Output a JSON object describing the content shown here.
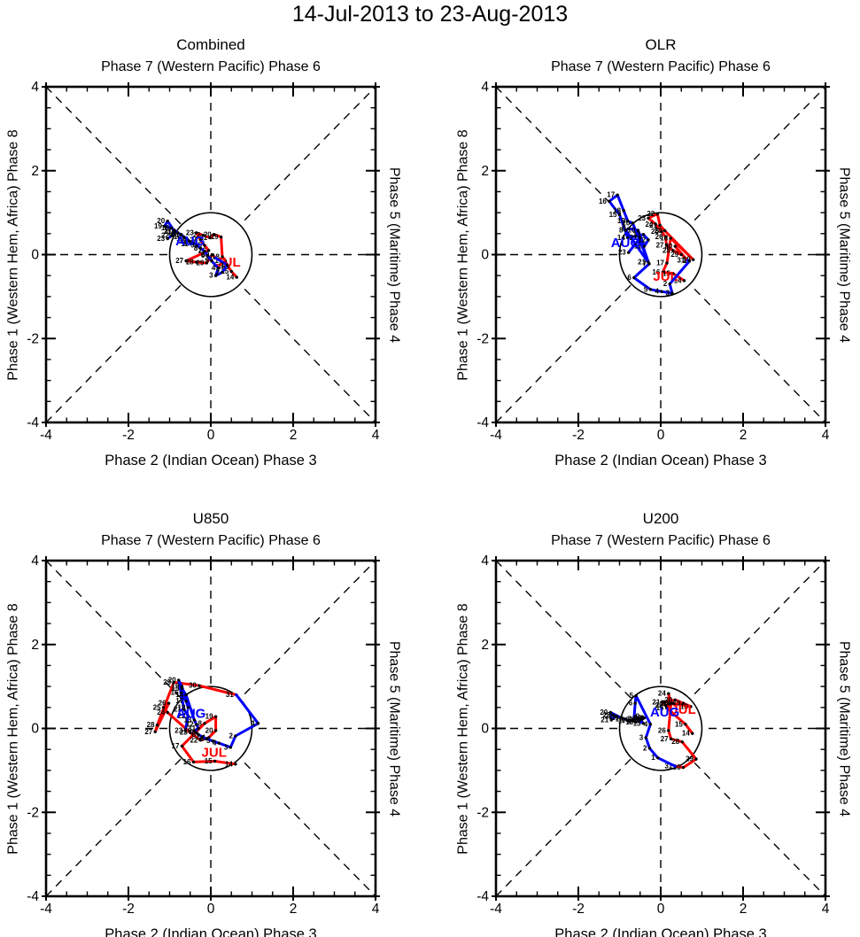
{
  "title": "14-Jul-2013 to 23-Aug-2013",
  "colors": {
    "jul": "#ff0000",
    "aug": "#0000ff",
    "axis": "#000000",
    "background": "#ffffff"
  },
  "axes": {
    "top_label": "Phase 7 (Western Pacific) Phase 6",
    "bottom_label": "Phase 2 (Indian Ocean) Phase 3",
    "left_label": "Phase 1 (Western Hem, Africa) Phase 8",
    "right_label": "Phase 5 (Maritime) Phase 4",
    "range": [
      -4,
      4
    ],
    "ticks": [
      -4,
      -2,
      0,
      2,
      4
    ],
    "minor_step": 0.5,
    "unit_circle_radius": 1
  },
  "chart_data": [
    {
      "type": "line",
      "title": "Combined",
      "xlim": [
        -4,
        4
      ],
      "ylim": [
        -4,
        4
      ],
      "series": [
        {
          "name": "JUL",
          "color": "#ff0000",
          "label_pos": [
            0.42,
            -0.28
          ],
          "days": [
            14,
            15,
            16,
            17,
            18,
            19,
            20,
            21,
            22,
            23,
            24,
            25,
            26,
            27,
            28,
            29,
            30,
            31
          ],
          "points": [
            [
              0.63,
              -0.54
            ],
            [
              0.5,
              -0.4
            ],
            [
              0.42,
              -0.28
            ],
            [
              0.35,
              -0.15
            ],
            [
              0.28,
              -0.05
            ],
            [
              0.25,
              0.42
            ],
            [
              0.08,
              0.48
            ],
            [
              -0.02,
              0.4
            ],
            [
              -0.18,
              0.46
            ],
            [
              -0.35,
              0.52
            ],
            [
              -0.25,
              0.35
            ],
            [
              -0.15,
              0.22
            ],
            [
              -0.05,
              0.1
            ],
            [
              -0.6,
              -0.15
            ],
            [
              -0.35,
              -0.18
            ],
            [
              -0.1,
              -0.2
            ],
            [
              0.03,
              0.0
            ],
            [
              0.12,
              -0.08
            ]
          ]
        },
        {
          "name": "AUG",
          "color": "#0000ff",
          "label_pos": [
            -0.5,
            0.22
          ],
          "days": [
            1,
            2,
            3,
            4,
            5,
            6,
            7,
            8,
            9,
            10,
            11,
            12,
            13,
            14,
            15,
            16,
            17,
            18,
            19,
            20,
            21,
            22,
            23
          ],
          "points": [
            [
              0.4,
              -0.25
            ],
            [
              0.28,
              -0.42
            ],
            [
              0.12,
              -0.5
            ],
            [
              0.18,
              -0.32
            ],
            [
              0.02,
              -0.15
            ],
            [
              -0.08,
              -0.02
            ],
            [
              -0.15,
              0.08
            ],
            [
              -0.25,
              0.15
            ],
            [
              -0.33,
              0.22
            ],
            [
              -0.42,
              0.28
            ],
            [
              -0.48,
              0.25
            ],
            [
              -0.52,
              0.32
            ],
            [
              -0.58,
              0.38
            ],
            [
              -0.65,
              0.42
            ],
            [
              -0.72,
              0.48
            ],
            [
              -0.8,
              0.52
            ],
            [
              -0.88,
              0.58
            ],
            [
              -0.95,
              0.63
            ],
            [
              -1.12,
              0.68
            ],
            [
              -1.05,
              0.8
            ],
            [
              -0.88,
              0.55
            ],
            [
              -0.95,
              0.45
            ],
            [
              -1.05,
              0.38
            ]
          ]
        }
      ]
    },
    {
      "type": "line",
      "title": "OLR",
      "xlim": [
        -4,
        4
      ],
      "ylim": [
        -4,
        4
      ],
      "series": [
        {
          "name": "JUL",
          "color": "#ff0000",
          "label_pos": [
            0.12,
            -0.62
          ],
          "days": [
            14,
            15,
            16,
            17,
            18,
            19,
            20,
            21,
            22,
            23,
            24,
            25,
            26,
            27,
            28,
            29,
            30,
            31
          ],
          "points": [
            [
              0.57,
              -0.62
            ],
            [
              0.3,
              -0.45
            ],
            [
              0.05,
              -0.42
            ],
            [
              0.15,
              -0.2
            ],
            [
              0.24,
              0.39
            ],
            [
              0.79,
              -0.12
            ],
            [
              0.1,
              0.57
            ],
            [
              -0.02,
              0.7
            ],
            [
              -0.08,
              0.97
            ],
            [
              -0.3,
              0.87
            ],
            [
              -0.12,
              0.72
            ],
            [
              0.02,
              0.55
            ],
            [
              0.12,
              0.42
            ],
            [
              0.14,
              0.22
            ],
            [
              0.3,
              0.1
            ],
            [
              0.5,
              0.0
            ],
            [
              0.35,
              0.2
            ],
            [
              0.65,
              -0.14
            ]
          ]
        },
        {
          "name": "AUG",
          "color": "#0000ff",
          "label_pos": [
            -0.85,
            0.18
          ],
          "days": [
            1,
            2,
            3,
            4,
            5,
            6,
            7,
            8,
            9,
            10,
            11,
            12,
            13,
            14,
            15,
            16,
            17,
            18,
            19,
            20,
            21,
            22,
            23
          ],
          "points": [
            [
              0.7,
              -0.15
            ],
            [
              0.22,
              -0.7
            ],
            [
              0.28,
              -0.92
            ],
            [
              0.02,
              -0.88
            ],
            [
              -0.25,
              -0.83
            ],
            [
              -0.65,
              -0.55
            ],
            [
              -0.28,
              -0.22
            ],
            [
              -0.85,
              0.58
            ],
            [
              -0.78,
              0.62
            ],
            [
              -0.55,
              0.58
            ],
            [
              -0.4,
              0.2
            ],
            [
              -0.3,
              0.35
            ],
            [
              -0.42,
              0.48
            ],
            [
              -0.8,
              0.4
            ],
            [
              -1.0,
              0.95
            ],
            [
              -1.25,
              1.27
            ],
            [
              -1.05,
              1.42
            ],
            [
              -0.9,
              1.05
            ],
            [
              -0.8,
              0.8
            ],
            [
              -0.68,
              0.75
            ],
            [
              -0.3,
              -0.18
            ],
            [
              -0.5,
              0.4
            ],
            [
              -0.78,
              0.05
            ]
          ]
        }
      ]
    },
    {
      "type": "line",
      "title": "U850",
      "xlim": [
        -4,
        4
      ],
      "ylim": [
        -4,
        4
      ],
      "series": [
        {
          "name": "JUL",
          "color": "#ff0000",
          "label_pos": [
            0.08,
            -0.68
          ],
          "days": [
            14,
            15,
            16,
            17,
            18,
            19,
            20,
            21,
            22,
            23,
            24,
            25,
            26,
            27,
            28,
            29,
            30,
            31
          ],
          "points": [
            [
              0.6,
              -0.85
            ],
            [
              0.1,
              -0.78
            ],
            [
              -0.42,
              -0.8
            ],
            [
              -0.7,
              -0.42
            ],
            [
              -0.15,
              0.12
            ],
            [
              0.12,
              0.28
            ],
            [
              0.12,
              -0.05
            ],
            [
              -0.05,
              -0.22
            ],
            [
              -0.25,
              -0.28
            ],
            [
              -0.5,
              -0.1
            ],
            [
              -1.05,
              0.38
            ],
            [
              -1.15,
              0.5
            ],
            [
              -1.02,
              0.6
            ],
            [
              -1.35,
              -0.08
            ],
            [
              -1.3,
              0.08
            ],
            [
              -0.9,
              1.1
            ],
            [
              -0.28,
              1.02
            ],
            [
              0.62,
              0.8
            ]
          ]
        },
        {
          "name": "AUG",
          "color": "#0000ff",
          "label_pos": [
            -0.48,
            0.25
          ],
          "days": [
            1,
            2,
            3,
            4,
            5,
            6,
            7,
            8,
            9,
            10,
            11,
            12,
            13,
            14,
            15,
            16,
            17,
            18,
            19,
            20,
            21,
            22,
            23
          ],
          "points": [
            [
              1.15,
              0.12
            ],
            [
              0.6,
              -0.18
            ],
            [
              0.48,
              -0.45
            ],
            [
              0.2,
              -0.35
            ],
            [
              0.05,
              -0.3
            ],
            [
              -0.1,
              -0.25
            ],
            [
              -0.2,
              -0.2
            ],
            [
              -0.3,
              -0.15
            ],
            [
              -0.35,
              -0.1
            ],
            [
              -0.4,
              -0.05
            ],
            [
              -0.3,
              0.0
            ],
            [
              -0.35,
              0.1
            ],
            [
              -0.4,
              0.2
            ],
            [
              -0.6,
              0.8
            ],
            [
              -0.7,
              0.95
            ],
            [
              -0.72,
              0.85
            ],
            [
              -0.6,
              0.65
            ],
            [
              -0.55,
              0.5
            ],
            [
              -0.7,
              1.0
            ],
            [
              -0.78,
              1.15
            ],
            [
              -0.65,
              0.45
            ],
            [
              -0.55,
              0.3
            ],
            [
              -0.62,
              -0.05
            ]
          ]
        }
      ]
    },
    {
      "type": "line",
      "title": "U200",
      "xlim": [
        -4,
        4
      ],
      "ylim": [
        -4,
        4
      ],
      "series": [
        {
          "name": "JUL",
          "color": "#ff0000",
          "label_pos": [
            0.55,
            0.35
          ],
          "days": [
            14,
            15,
            16,
            17,
            18,
            19,
            20,
            21,
            22,
            23,
            24,
            25,
            26,
            27,
            28,
            29,
            30,
            31
          ],
          "points": [
            [
              0.77,
              -0.12
            ],
            [
              0.6,
              0.1
            ],
            [
              0.14,
              0.49
            ],
            [
              0.3,
              0.6
            ],
            [
              0.73,
              0.52
            ],
            [
              0.55,
              0.6
            ],
            [
              0.35,
              0.68
            ],
            [
              0.05,
              0.62
            ],
            [
              0.12,
              0.55
            ],
            [
              0.22,
              0.58
            ],
            [
              0.19,
              0.83
            ],
            [
              0.25,
              0.6
            ],
            [
              0.19,
              -0.05
            ],
            [
              0.25,
              -0.25
            ],
            [
              0.52,
              -0.32
            ],
            [
              0.86,
              -0.73
            ],
            [
              0.55,
              -0.93
            ],
            [
              0.35,
              -0.9
            ]
          ]
        },
        {
          "name": "AUG",
          "color": "#0000ff",
          "label_pos": [
            0.1,
            0.28
          ],
          "days": [
            1,
            2,
            3,
            4,
            5,
            6,
            7,
            8,
            9,
            10,
            11,
            12,
            13,
            14,
            15,
            16,
            17,
            18,
            19,
            20,
            21,
            22,
            23
          ],
          "points": [
            [
              -0.07,
              -0.7
            ],
            [
              -0.27,
              -0.47
            ],
            [
              -0.36,
              -0.22
            ],
            [
              -0.25,
              0.1
            ],
            [
              -0.6,
              0.78
            ],
            [
              -0.62,
              0.6
            ],
            [
              -0.65,
              0.22
            ],
            [
              -0.5,
              0.25
            ],
            [
              -0.45,
              0.28
            ],
            [
              -0.4,
              0.25
            ],
            [
              -0.45,
              0.22
            ],
            [
              -0.5,
              0.2
            ],
            [
              -0.42,
              0.12
            ],
            [
              -0.55,
              0.18
            ],
            [
              -0.6,
              0.15
            ],
            [
              -0.7,
              0.2
            ],
            [
              -0.78,
              0.18
            ],
            [
              -0.85,
              0.22
            ],
            [
              -0.95,
              0.25
            ],
            [
              -1.22,
              0.38
            ],
            [
              -1.2,
              0.2
            ],
            [
              -1.1,
              0.28
            ],
            [
              -1.15,
              0.32
            ]
          ]
        }
      ]
    }
  ]
}
